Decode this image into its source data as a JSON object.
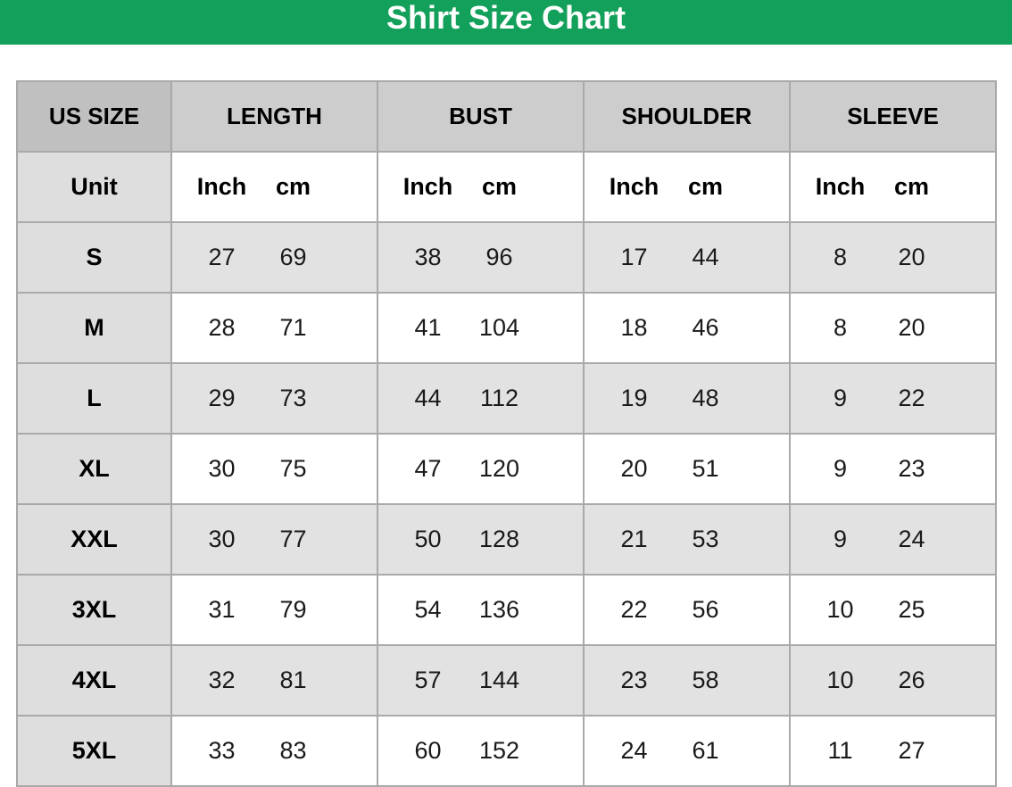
{
  "title": "Shirt Size Chart",
  "colors": {
    "banner": "#12a05a",
    "header_bg": "#cdcdcd",
    "alt_row_bg": "#e2e2e2",
    "border": "#a9a9a9"
  },
  "headers": [
    "US SIZE",
    "LENGTH",
    "BUST",
    "SHOULDER",
    "SLEEVE"
  ],
  "unit_label": "Unit",
  "units": [
    "Inch",
    "cm"
  ],
  "rows": [
    {
      "size": "S",
      "length": [
        "27",
        "69"
      ],
      "bust": [
        "38",
        "96"
      ],
      "shoulder": [
        "17",
        "44"
      ],
      "sleeve": [
        "8",
        "20"
      ]
    },
    {
      "size": "M",
      "length": [
        "28",
        "71"
      ],
      "bust": [
        "41",
        "104"
      ],
      "shoulder": [
        "18",
        "46"
      ],
      "sleeve": [
        "8",
        "20"
      ]
    },
    {
      "size": "L",
      "length": [
        "29",
        "73"
      ],
      "bust": [
        "44",
        "112"
      ],
      "shoulder": [
        "19",
        "48"
      ],
      "sleeve": [
        "9",
        "22"
      ]
    },
    {
      "size": "XL",
      "length": [
        "30",
        "75"
      ],
      "bust": [
        "47",
        "120"
      ],
      "shoulder": [
        "20",
        "51"
      ],
      "sleeve": [
        "9",
        "23"
      ]
    },
    {
      "size": "XXL",
      "length": [
        "30",
        "77"
      ],
      "bust": [
        "50",
        "128"
      ],
      "shoulder": [
        "21",
        "53"
      ],
      "sleeve": [
        "9",
        "24"
      ]
    },
    {
      "size": "3XL",
      "length": [
        "31",
        "79"
      ],
      "bust": [
        "54",
        "136"
      ],
      "shoulder": [
        "22",
        "56"
      ],
      "sleeve": [
        "10",
        "25"
      ]
    },
    {
      "size": "4XL",
      "length": [
        "32",
        "81"
      ],
      "bust": [
        "57",
        "144"
      ],
      "shoulder": [
        "23",
        "58"
      ],
      "sleeve": [
        "10",
        "26"
      ]
    },
    {
      "size": "5XL",
      "length": [
        "33",
        "83"
      ],
      "bust": [
        "60",
        "152"
      ],
      "shoulder": [
        "24",
        "61"
      ],
      "sleeve": [
        "11",
        "27"
      ]
    }
  ]
}
